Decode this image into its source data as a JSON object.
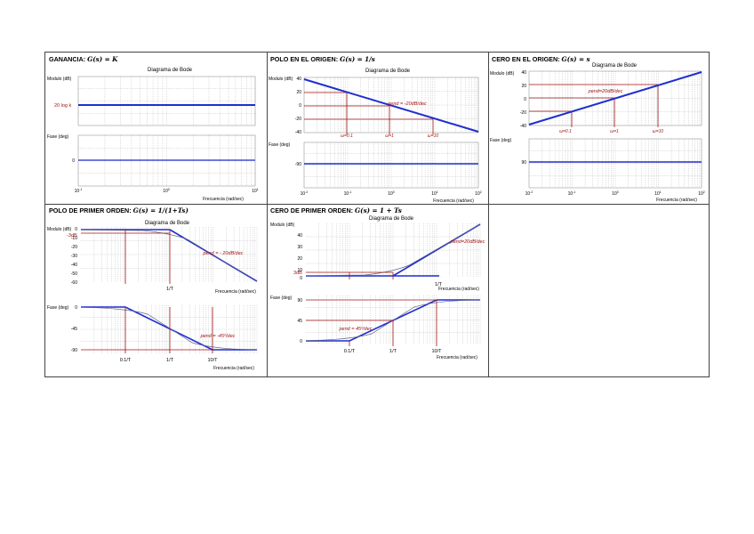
{
  "panels": {
    "gain": {
      "title_prefix": "GANANCIA: ",
      "title_math": "G(s) = K",
      "diagram_title": "Diagrama de Bode",
      "mag_ylabel": "Modulo (dB)",
      "mag_annotation": "20 log k",
      "phase_ylabel": "Fase (deg)",
      "phase_tick": "0",
      "x_ticks": [
        "10",
        "10",
        "10"
      ],
      "x_exps": [
        "-1",
        "0",
        "1"
      ],
      "xlabel": "Frecuencia (rad/sec)"
    },
    "pole_origin": {
      "title_prefix": "POLO EN EL ORIGEN: ",
      "title_math": "G(s) = 1/s",
      "diagram_title": "Diagrama de Bode",
      "mag_ylabel": "Modulo (dB)",
      "mag_ticks": [
        "40",
        "20",
        "0",
        "-20",
        "-40"
      ],
      "slope_label": "pend = -20dB/dec",
      "freq_marks": [
        "ω=0.1",
        "ω=1",
        "ω=10"
      ],
      "phase_ylabel": "Fase (deg)",
      "phase_tick": "-90",
      "x_ticks": [
        "10",
        "10",
        "10",
        "10",
        "10"
      ],
      "x_exps": [
        "-2",
        "-1",
        "0",
        "1",
        "2"
      ],
      "xlabel": "Frecuencia (rad/sec)"
    },
    "zero_origin": {
      "title_prefix": "CERO EN EL ORIGEN: ",
      "title_math": "G(s) = s",
      "diagram_title": "Diagrama de Bode",
      "mag_ylabel": "Modulo (dB)",
      "mag_ticks": [
        "40",
        "20",
        "0",
        "-20",
        "-40"
      ],
      "slope_label": "pend=20dB/dec",
      "freq_marks": [
        "ω=0.1",
        "ω=1",
        "ω=10"
      ],
      "phase_ylabel": "Fase (deg)",
      "phase_tick": "90",
      "x_ticks": [
        "10",
        "10",
        "10",
        "10",
        "10"
      ],
      "x_exps": [
        "-2",
        "-1",
        "0",
        "1",
        "2"
      ],
      "xlabel": "Frecuencia (rad/sec)"
    },
    "first_order_pole": {
      "title_prefix": "POLO DE PRIMER ORDEN: ",
      "title_math": "G(s) = 1/(1+Ts)",
      "diagram_title": "Diagrama de Bode",
      "mag_ylabel": "Modulo (dB)",
      "mag_ticks": [
        "0",
        "-10",
        "-20",
        "-30",
        "-40",
        "-50",
        "-60"
      ],
      "mag_annotation": "-3dB",
      "slope_label": "pend = - 20dB/dec",
      "mag_x_mark": "1/T",
      "phase_ylabel": "Fase (deg)",
      "phase_ticks": [
        "0",
        "-45",
        "-90"
      ],
      "phase_slope_label": "pend = -45º/dec",
      "phase_x_marks": [
        "0.1/T",
        "1/T",
        "10/T"
      ],
      "xlabel": "Frecuencia (rad/sec)"
    },
    "first_order_zero": {
      "title_prefix": "CERO DE PRIMER ORDEN: ",
      "title_math": "G(s) = 1 + Ts",
      "diagram_title": "Diagrama de Bode",
      "mag_ylabel": "Modulo (dB)",
      "mag_ticks": [
        "40",
        "30",
        "20",
        "10",
        "0"
      ],
      "mag_annotation": "3dB",
      "slope_label": "pend=20dB/dec",
      "mag_x_mark": "1/T",
      "phase_ylabel": "Fase (deg)",
      "phase_ticks": [
        "90",
        "45",
        "0"
      ],
      "phase_slope_label": "pend = 45º/dec",
      "phase_x_marks": [
        "0.1/T",
        "1/T",
        "10/T"
      ],
      "xlabel": "Frecuencia (rad/sec)"
    }
  },
  "colors": {
    "curve": "#1f2fd0",
    "annotation": "#a31414",
    "grid": "#b8b8b8",
    "axis": "#777777"
  }
}
